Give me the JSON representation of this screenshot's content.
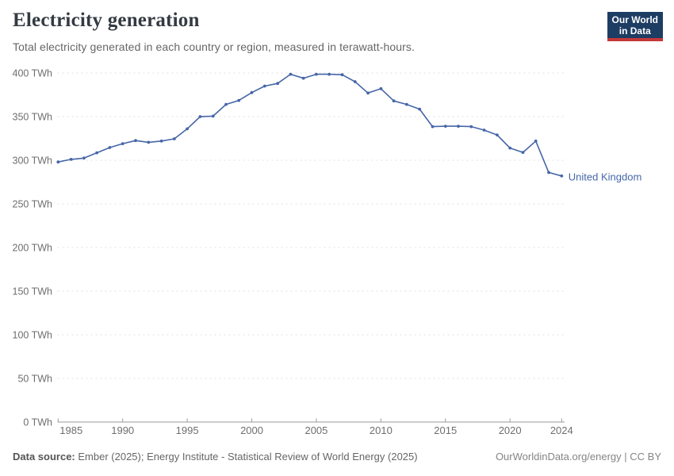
{
  "header": {
    "title": "Electricity generation",
    "subtitle": "Total electricity generated in each country or region, measured in terawatt-hours."
  },
  "logo": {
    "line1": "Our World",
    "line2": "in Data",
    "bg_color": "#1d3d63",
    "accent_color": "#c5383a"
  },
  "chart_data": {
    "type": "line",
    "title": "Electricity generation",
    "unit": "TWh",
    "x": [
      1985,
      1986,
      1987,
      1988,
      1989,
      1990,
      1991,
      1992,
      1993,
      1994,
      1995,
      1996,
      1997,
      1998,
      1999,
      2000,
      2001,
      2002,
      2003,
      2004,
      2005,
      2006,
      2007,
      2008,
      2009,
      2010,
      2011,
      2012,
      2013,
      2014,
      2015,
      2016,
      2017,
      2018,
      2019,
      2020,
      2021,
      2022,
      2023,
      2024
    ],
    "series": [
      {
        "name": "United Kingdom",
        "color": "#4666a8",
        "values": [
          298,
          301,
          302.5,
          308.5,
          314.5,
          319,
          322.5,
          320.5,
          322,
          324.5,
          336,
          350,
          350.5,
          364,
          368.5,
          377.5,
          385,
          388,
          398.5,
          394,
          398.5,
          398.5,
          398,
          390,
          377,
          382,
          368,
          364,
          358.5,
          338.5,
          339,
          339,
          338.5,
          334.5,
          329,
          314,
          309,
          322,
          286,
          282
        ]
      }
    ],
    "ylim": [
      0,
      400
    ],
    "yticks": [
      0,
      50,
      100,
      150,
      200,
      250,
      300,
      350,
      400
    ],
    "ytick_suffix": " TWh",
    "xticks": [
      1985,
      1990,
      1995,
      2000,
      2005,
      2010,
      2015,
      2020,
      2024
    ],
    "grid": "horizontal-dashed",
    "legend_position": "end-of-line"
  },
  "footer": {
    "datasource_label": "Data source:",
    "datasource_text": "Ember (2025); Energy Institute - Statistical Review of World Energy (2025)",
    "link_text": "OurWorldinData.org/energy | CC BY"
  }
}
